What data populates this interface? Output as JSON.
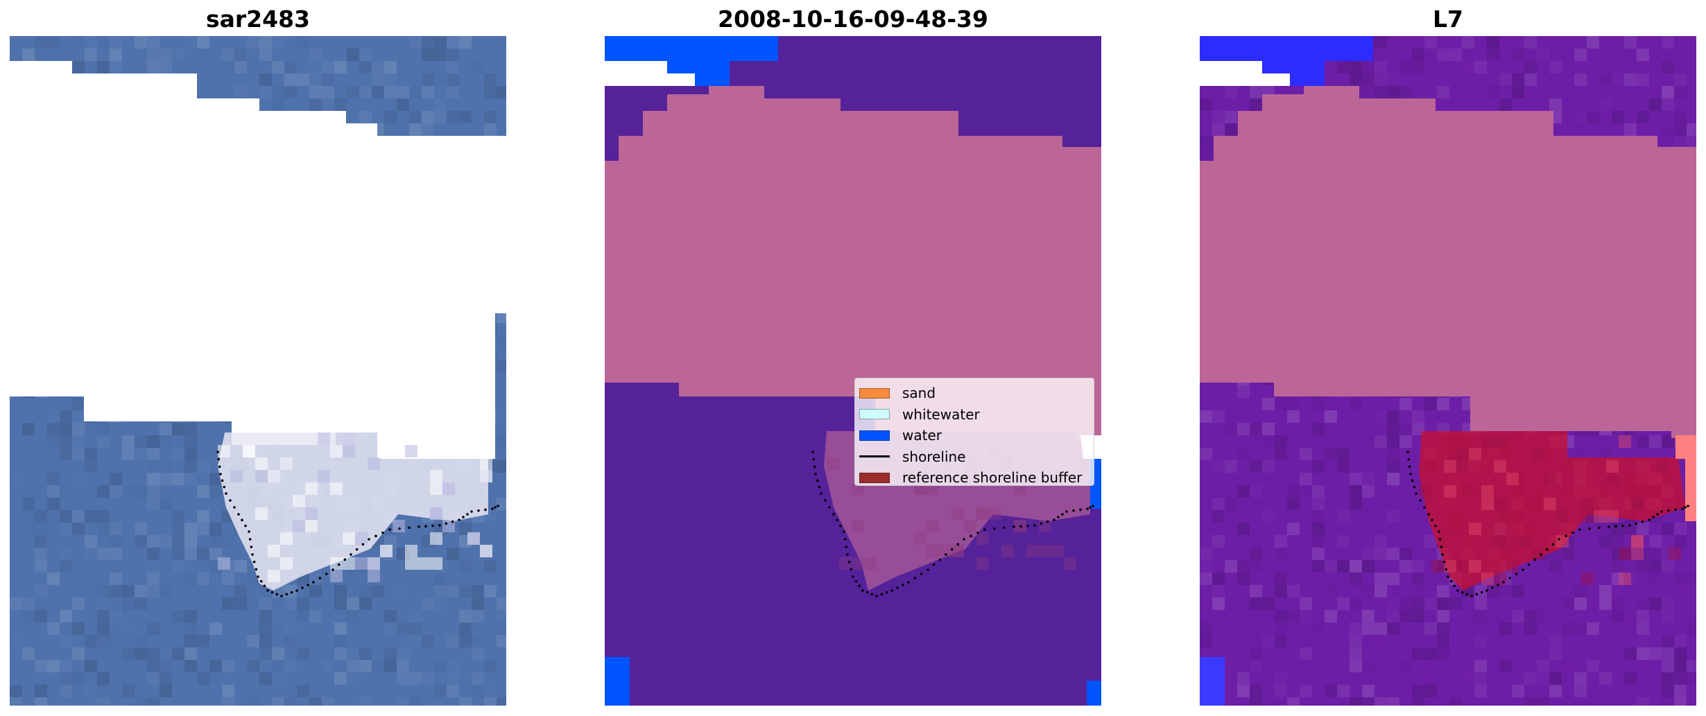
{
  "panels": [
    {
      "title": "sar2483",
      "kind": "rgb"
    },
    {
      "title": "2008-10-16-09-48-39",
      "kind": "classified"
    },
    {
      "title": "L7",
      "kind": "overlay"
    }
  ],
  "legend": {
    "items": [
      {
        "label": "sand",
        "color": "#f78c3e",
        "type": "patch"
      },
      {
        "label": "whitewater",
        "color": "#cffdfd",
        "type": "patch"
      },
      {
        "label": "water",
        "color": "#0055ff",
        "type": "patch"
      },
      {
        "label": "shoreline",
        "color": "#000000",
        "type": "line"
      },
      {
        "label": "reference shoreline buffer",
        "color": "#9b2c2c",
        "type": "patch"
      }
    ]
  },
  "colors": {
    "background": "#ffffff",
    "sea_rgb": "#4f72ac",
    "whitewater_rgb": "#e6e6f2",
    "mask_magenta": "#bb6697",
    "water_class_purple": "#55229a",
    "water_blue": "#0055ff",
    "overlay_purple": "#6d1ea6",
    "buffer_red": "#c8102e",
    "shoreline_dots": "#000000"
  }
}
